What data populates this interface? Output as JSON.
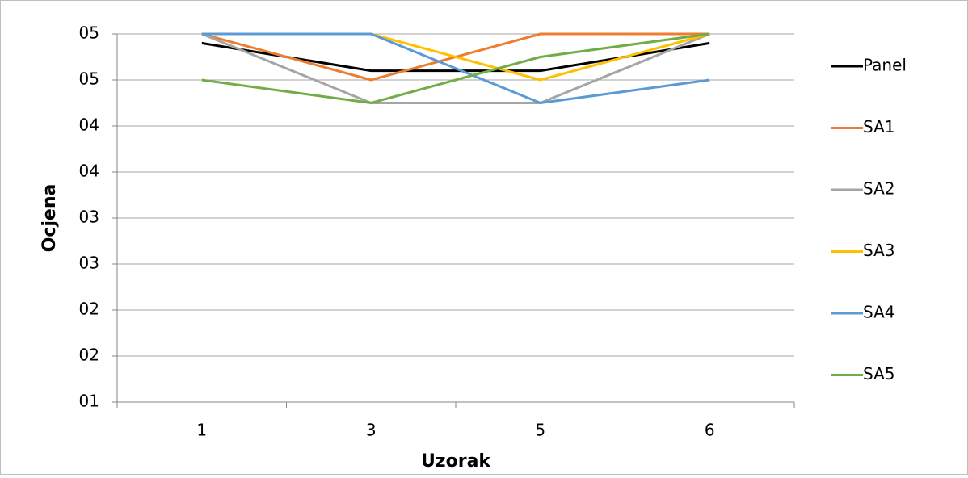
{
  "chart_data": {
    "type": "line",
    "xlabel": "Uzorak",
    "ylabel": "Ocjena",
    "categories": [
      "1",
      "3",
      "5",
      "6"
    ],
    "series": [
      {
        "name": "Panel",
        "color": "#000000",
        "values": [
          4.9,
          4.6,
          4.6,
          4.9
        ]
      },
      {
        "name": "SA1",
        "color": "#ed7d31",
        "values": [
          5,
          4.5,
          5,
          5
        ]
      },
      {
        "name": "SA2",
        "color": "#a5a5a5",
        "values": [
          5,
          4.25,
          4.25,
          5
        ]
      },
      {
        "name": "SA3",
        "color": "#ffc000",
        "values": [
          5,
          5,
          4.5,
          5
        ]
      },
      {
        "name": "SA4",
        "color": "#5b9bd5",
        "values": [
          5,
          5,
          4.25,
          4.5
        ]
      },
      {
        "name": "SA5",
        "color": "#70ad47",
        "values": [
          4.5,
          4.25,
          4.75,
          5
        ]
      }
    ],
    "ylim": [
      1,
      5
    ],
    "yticks": [
      {
        "value": 1,
        "label": "01"
      },
      {
        "value": 1.5,
        "label": "02"
      },
      {
        "value": 2,
        "label": "02"
      },
      {
        "value": 2.5,
        "label": "03"
      },
      {
        "value": 3,
        "label": "03"
      },
      {
        "value": 3.5,
        "label": "04"
      },
      {
        "value": 4,
        "label": "04"
      },
      {
        "value": 4.5,
        "label": "05"
      },
      {
        "value": 5,
        "label": "05"
      }
    ],
    "grid": true,
    "legend": "right"
  }
}
